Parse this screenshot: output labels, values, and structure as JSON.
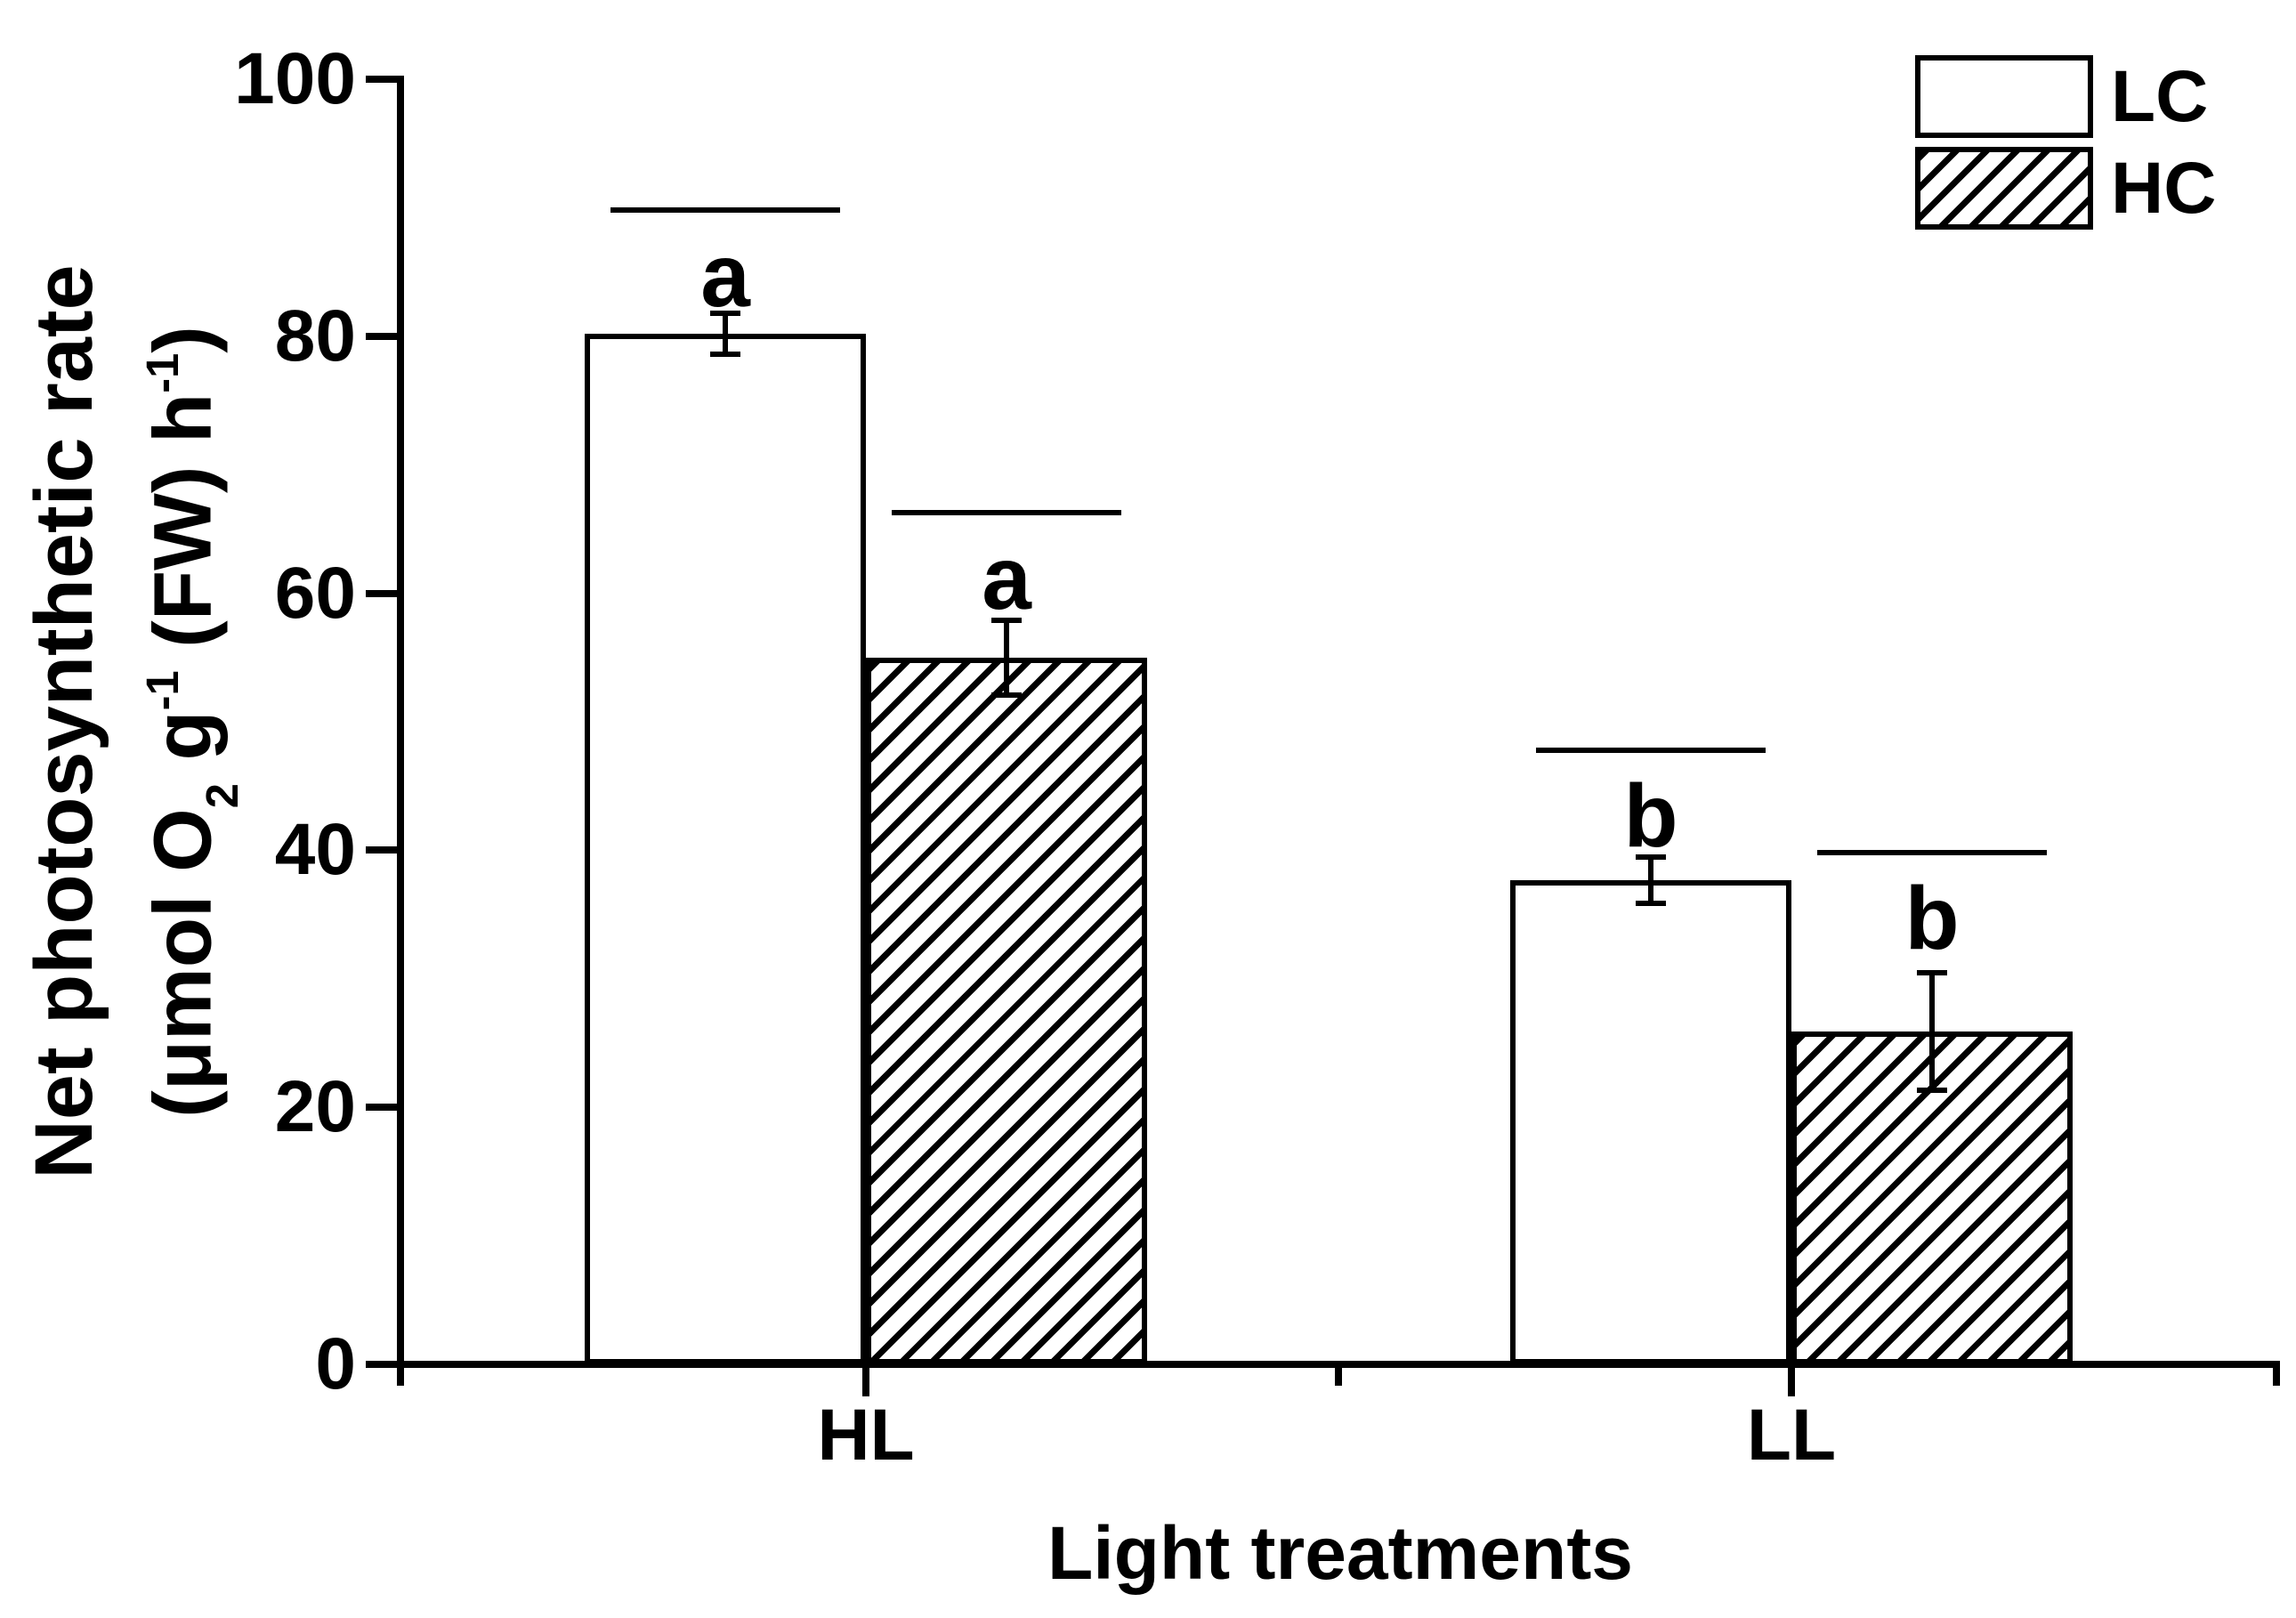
{
  "figure": {
    "background": "#ffffff",
    "ink_color": "#000000"
  },
  "chart_data": {
    "type": "bar",
    "title": "",
    "categories": [
      "HL",
      "LL"
    ],
    "series": [
      {
        "name": "LC",
        "fill": "open",
        "values": [
          80.2,
          37.7
        ],
        "errors": [
          1.6,
          1.8
        ],
        "sig_letters": [
          "a",
          "b"
        ],
        "sig_line_values": [
          90,
          48
        ]
      },
      {
        "name": "HC",
        "fill": "hatched",
        "values": [
          55.0,
          25.9
        ],
        "errors": [
          2.9,
          4.6
        ],
        "sig_letters": [
          "a",
          "b"
        ],
        "sig_line_values": [
          66.5,
          40
        ]
      }
    ],
    "xlabel": "Light treatments",
    "ylabel": "Net photosynthetic rate (μmol O2 g-1 (FW) h-1)",
    "ylim": [
      0,
      100
    ],
    "yticks": [
      0,
      20,
      40,
      60,
      80,
      100
    ],
    "grid": false,
    "legend_position": "top-right",
    "error_bars": true
  },
  "y_axis": {
    "title_line1": "Net photosynthetic rate",
    "title_line2": {
      "open": "(μmol O",
      "sub_o2": "2",
      "g": " g",
      "sup_g": "-1",
      "fw": " (FW) h",
      "sup_h": "-1",
      "close": ")"
    },
    "tick_labels": [
      "0",
      "20",
      "40",
      "60",
      "80",
      "100"
    ]
  },
  "x_axis": {
    "title": "Light treatments",
    "category_labels": [
      "HL",
      "LL"
    ]
  },
  "legend": {
    "items": [
      {
        "label": "LC",
        "fill": "open"
      },
      {
        "label": "HC",
        "fill": "hatched"
      }
    ]
  }
}
